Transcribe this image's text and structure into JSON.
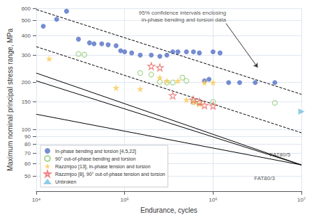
{
  "chart_data": {
    "type": "scatter",
    "xlabel": "Endurance, cycles",
    "ylabel": "Maximum nominal principal stress range, MPa",
    "log": true,
    "xlim": [
      10000,
      10000000
    ],
    "ylim": [
      40,
      600
    ],
    "xticks": [
      {
        "value": 10000,
        "label": "10⁴"
      },
      {
        "value": 100000,
        "label": "10⁵"
      },
      {
        "value": 1000000,
        "label": "10⁶"
      },
      {
        "value": 10000000,
        "label": "10⁷"
      }
    ],
    "yticks": [
      50,
      60,
      70,
      80,
      90,
      100,
      150,
      200,
      300,
      400,
      500,
      600
    ],
    "grid": true,
    "legend": "lower left",
    "series": [
      {
        "name": "In-phase bending and torsion [4,5,22]",
        "type": "scatter",
        "marker": "circle",
        "values": [
          [
            12000,
            460
          ],
          [
            17000,
            510
          ],
          [
            22000,
            575
          ],
          [
            30000,
            380
          ],
          [
            40000,
            360
          ],
          [
            45000,
            355
          ],
          [
            55000,
            355
          ],
          [
            65000,
            350
          ],
          [
            80000,
            345
          ],
          [
            90000,
            320
          ],
          [
            100000,
            315
          ],
          [
            120000,
            310
          ],
          [
            150000,
            300
          ],
          [
            200000,
            300
          ],
          [
            250000,
            295
          ],
          [
            300000,
            300
          ],
          [
            350000,
            315
          ],
          [
            400000,
            315
          ],
          [
            500000,
            315
          ],
          [
            600000,
            315
          ],
          [
            700000,
            310
          ],
          [
            800000,
            205
          ],
          [
            900000,
            210
          ],
          [
            1000000,
            315
          ],
          [
            1200000,
            310
          ],
          [
            1500000,
            200
          ],
          [
            2000000,
            200
          ],
          [
            3000000,
            200
          ],
          [
            5000000,
            200
          ]
        ]
      },
      {
        "name": "90° out-of-phase bending and torsion",
        "type": "scatter",
        "marker": "open_circle",
        "values": [
          [
            30000,
            305
          ],
          [
            35000,
            302
          ],
          [
            150000,
            230
          ],
          [
            200000,
            225
          ],
          [
            250000,
            202
          ],
          [
            300000,
            200
          ],
          [
            350000,
            200
          ],
          [
            450000,
            215
          ],
          [
            500000,
            205
          ],
          [
            600000,
            150
          ],
          [
            700000,
            148
          ],
          [
            1000000,
            150
          ],
          [
            5000000,
            148
          ]
        ]
      },
      {
        "name": "Razzmjoo [13], in-phase tension and torsion",
        "type": "scatter",
        "marker": "star",
        "values": [
          [
            14000,
            285
          ],
          [
            80000,
            185
          ],
          [
            150000,
            182
          ],
          [
            250000,
            215
          ],
          [
            300000,
            205
          ],
          [
            400000,
            205
          ],
          [
            500000,
            155
          ],
          [
            600000,
            150
          ],
          [
            700000,
            145
          ],
          [
            800000,
            200
          ],
          [
            1000000,
            200
          ]
        ]
      },
      {
        "name": "Razzmjoo [8], 90° out-of-phase tension and torsion",
        "type": "scatter",
        "marker": "open_star",
        "values": [
          [
            200000,
            255
          ],
          [
            250000,
            250
          ],
          [
            350000,
            165
          ],
          [
            600000,
            155
          ],
          [
            700000,
            150
          ],
          [
            800000,
            143
          ],
          [
            1000000,
            142
          ]
        ]
      },
      {
        "name": "Unbroken",
        "type": "scatter",
        "marker": "arrow",
        "values": [
          [
            10000000,
            130
          ]
        ]
      },
      {
        "type": "line",
        "color": "#000000",
        "line_style": "solid",
        "values": [
          [
            10000,
            230
          ],
          [
            10000000,
            59
          ]
        ]
      },
      {
        "type": "line",
        "color": "#000000",
        "line_style": "solid",
        "values": [
          [
            10000,
            205
          ],
          [
            10000000,
            59
          ]
        ]
      },
      {
        "type": "line",
        "color": "#000000",
        "line_style": "solid",
        "values": [
          [
            10000,
            125
          ],
          [
            10000000,
            59
          ]
        ]
      },
      {
        "type": "line",
        "color": "#000000",
        "line_style": "dashed",
        "values": [
          [
            10000,
            590
          ],
          [
            10000000,
            168
          ]
        ]
      },
      {
        "type": "line",
        "color": "#000000",
        "line_style": "dashed",
        "values": [
          [
            10000,
            340
          ],
          [
            10000000,
            95
          ]
        ]
      }
    ],
    "annotations": [
      {
        "text": "FAT80/5",
        "x": 7500000,
        "y": 65
      },
      {
        "text": "FAT80/3",
        "x": 5000000,
        "y": 46
      },
      {
        "text": "95% confidence intervals enclosing\nin-phase bending and torsion data",
        "x": 1400000,
        "y": 480,
        "arrow_to": [
          3200000,
          250
        ]
      }
    ]
  }
}
